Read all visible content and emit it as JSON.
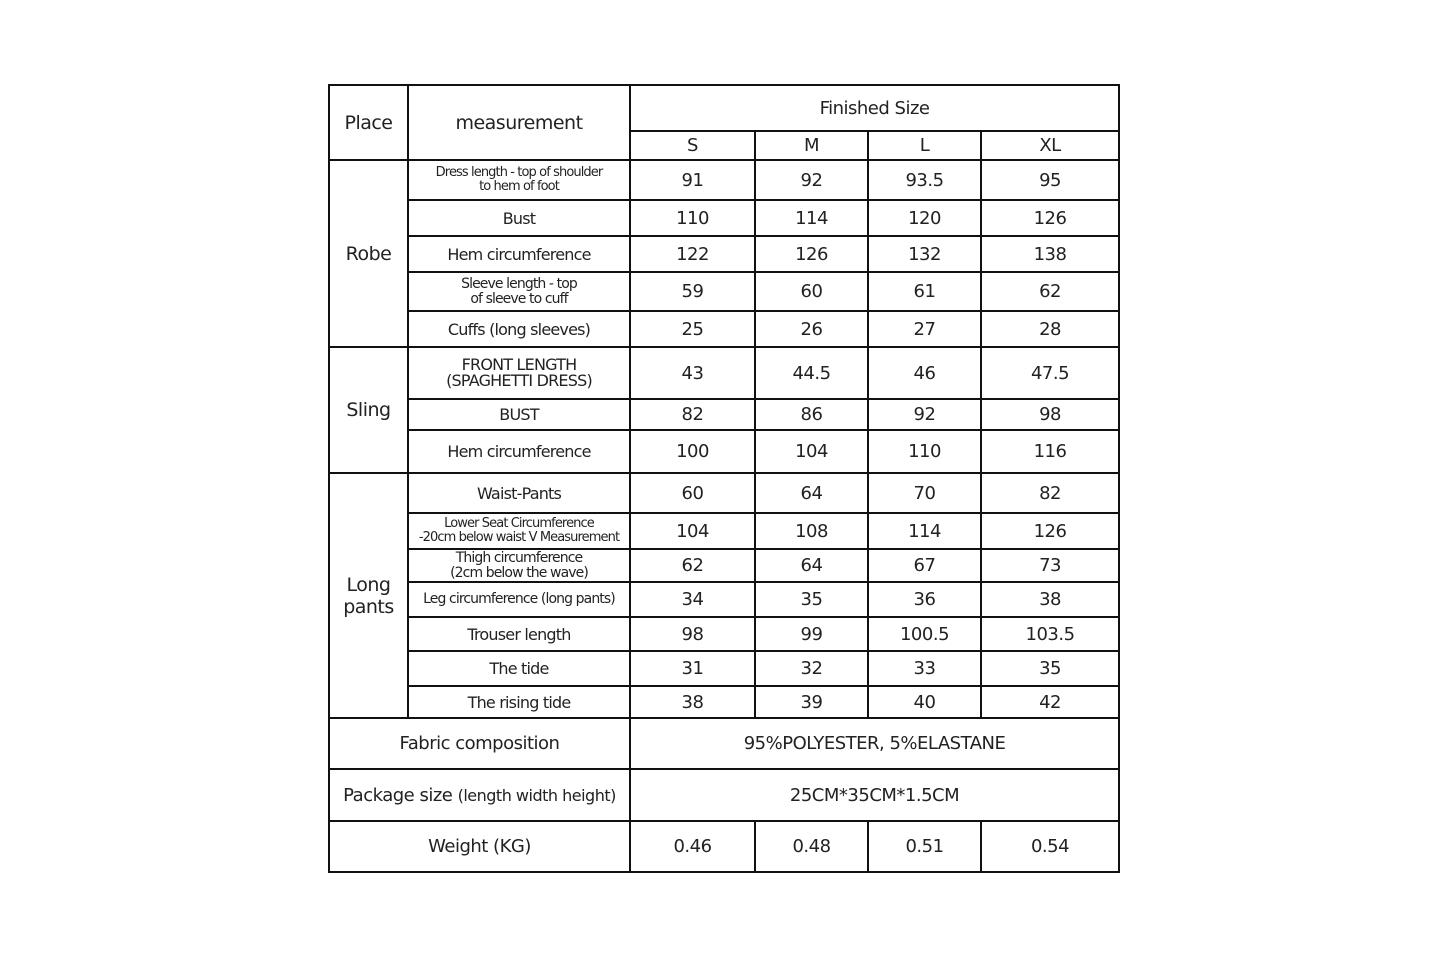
{
  "header": {
    "place": "Place",
    "measurement": "measurement",
    "finished_size": "Finished Size",
    "sizes": [
      "S",
      "M",
      "L",
      "XL"
    ]
  },
  "groups": [
    {
      "place": "Robe",
      "rows": [
        {
          "label": "Dress length - top of shoulder",
          "label2": "to hem of foot",
          "values": [
            "91",
            "92",
            "93.5",
            "95"
          ]
        },
        {
          "label": "Bust",
          "values": [
            "110",
            "114",
            "120",
            "126"
          ]
        },
        {
          "label": "Hem circumference",
          "values": [
            "122",
            "126",
            "132",
            "138"
          ]
        },
        {
          "label": "Sleeve length - top",
          "label2": "of sleeve to cuff",
          "values": [
            "59",
            "60",
            "61",
            "62"
          ]
        },
        {
          "label": "Cuffs (long sleeves)",
          "values": [
            "25",
            "26",
            "27",
            "28"
          ]
        }
      ]
    },
    {
      "place": "Sling",
      "rows": [
        {
          "label": "FRONT LENGTH",
          "label2": "(SPAGHETTI DRESS)",
          "values": [
            "43",
            "44.5",
            "46",
            "47.5"
          ]
        },
        {
          "label": "BUST",
          "values": [
            "82",
            "86",
            "92",
            "98"
          ]
        },
        {
          "label": "Hem circumference",
          "values": [
            "100",
            "104",
            "110",
            "116"
          ]
        }
      ]
    },
    {
      "place": "Long",
      "place2": "pants",
      "rows": [
        {
          "label": "Waist-Pants",
          "values": [
            "60",
            "64",
            "70",
            "82"
          ]
        },
        {
          "label": "Lower Seat Circumference",
          "label2": "-20cm below waist V Measurement",
          "values": [
            "104",
            "108",
            "114",
            "126"
          ]
        },
        {
          "label": "Thigh circumference",
          "label2": "(2cm below the wave)",
          "values": [
            "62",
            "64",
            "67",
            "73"
          ]
        },
        {
          "label": "Leg circumference (long pants)",
          "values": [
            "34",
            "35",
            "36",
            "38"
          ]
        },
        {
          "label": "Trouser length",
          "values": [
            "98",
            "99",
            "100.5",
            "103.5"
          ]
        },
        {
          "label": "The tide",
          "values": [
            "31",
            "32",
            "33",
            "35"
          ]
        },
        {
          "label": "The rising tide",
          "values": [
            "38",
            "39",
            "40",
            "42"
          ]
        }
      ]
    }
  ],
  "fabric": {
    "label": "Fabric composition",
    "value": "95%POLYESTER, 5%ELASTANE"
  },
  "package": {
    "label": "Package size",
    "sublabel": "(length width height)",
    "value": "25CM*35CM*1.5CM"
  },
  "weight": {
    "label": "Weight  (KG)",
    "values": [
      "0.46",
      "0.48",
      "0.51",
      "0.54"
    ]
  }
}
